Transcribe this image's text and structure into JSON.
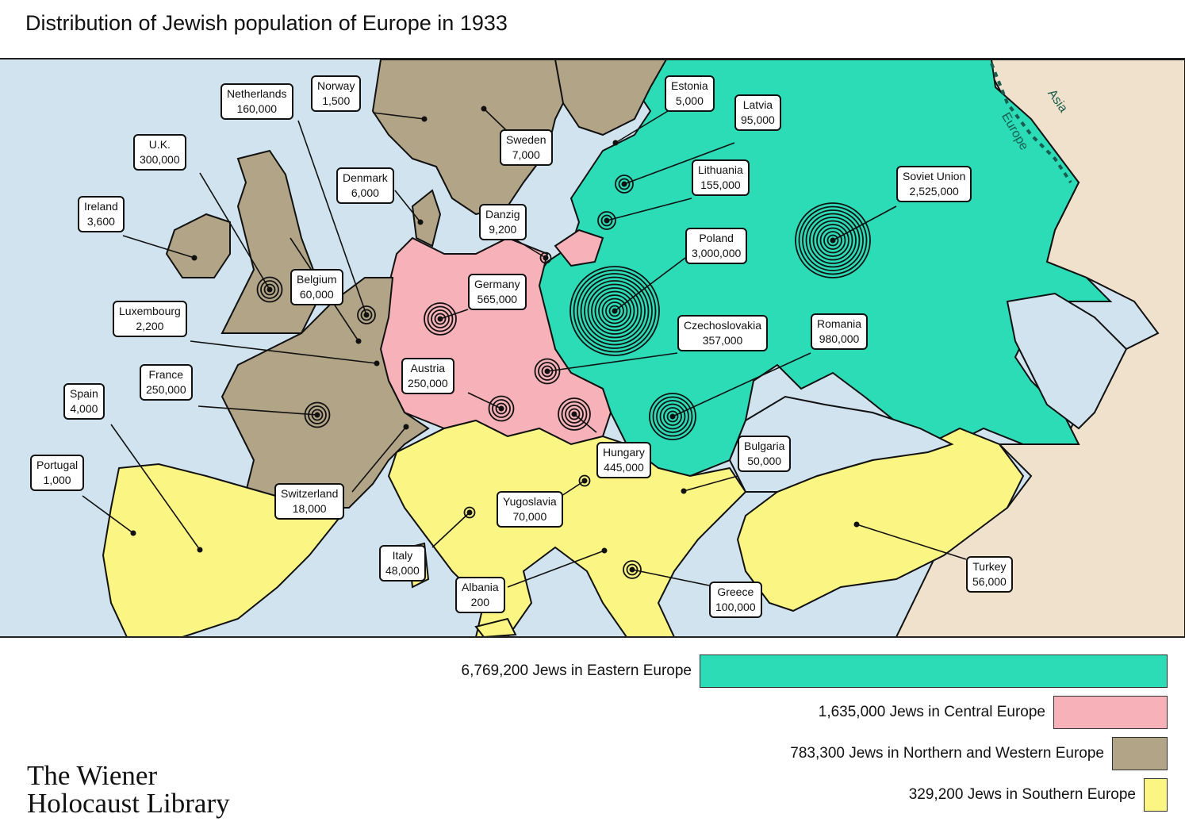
{
  "title": "Distribution of Jewish population of Europe in 1933",
  "colors": {
    "sea": "#d1e3ee",
    "eastern": "#2bdcb7",
    "central": "#f7b1b8",
    "northern_western": "#b1a487",
    "southern": "#fbf584",
    "asia": "#efe1cb"
  },
  "map": {
    "continent_labels": [
      "Europe",
      "Asia"
    ],
    "countries": [
      {
        "name": "Norway",
        "population": "1,500"
      },
      {
        "name": "Netherlands",
        "population": "160,000"
      },
      {
        "name": "U.K.",
        "population": "300,000"
      },
      {
        "name": "Ireland",
        "population": "3,600"
      },
      {
        "name": "Denmark",
        "population": "6,000"
      },
      {
        "name": "Sweden",
        "population": "7,000"
      },
      {
        "name": "Estonia",
        "population": "5,000"
      },
      {
        "name": "Latvia",
        "population": "95,000"
      },
      {
        "name": "Lithuania",
        "population": "155,000"
      },
      {
        "name": "Soviet Union",
        "population": "2,525,000"
      },
      {
        "name": "Danzig",
        "population": "9,200"
      },
      {
        "name": "Poland",
        "population": "3,000,000"
      },
      {
        "name": "Belgium",
        "population": "60,000"
      },
      {
        "name": "Luxembourg",
        "population": "2,200"
      },
      {
        "name": "Germany",
        "population": "565,000"
      },
      {
        "name": "Czechoslovakia",
        "population": "357,000"
      },
      {
        "name": "Romania",
        "population": "980,000"
      },
      {
        "name": "France",
        "population": "250,000"
      },
      {
        "name": "Austria",
        "population": "250,000"
      },
      {
        "name": "Spain",
        "population": "4,000"
      },
      {
        "name": "Portugal",
        "population": "1,000"
      },
      {
        "name": "Hungary",
        "population": "445,000"
      },
      {
        "name": "Bulgaria",
        "population": "50,000"
      },
      {
        "name": "Switzerland",
        "population": "18,000"
      },
      {
        "name": "Yugoslavia",
        "population": "70,000"
      },
      {
        "name": "Italy",
        "population": "48,000"
      },
      {
        "name": "Albania",
        "population": "200"
      },
      {
        "name": "Greece",
        "population": "100,000"
      },
      {
        "name": "Turkey",
        "population": "56,000"
      }
    ]
  },
  "legend": [
    {
      "label": "6,769,200 Jews in Eastern Europe",
      "value": 6769200,
      "color": "#2bdcb7"
    },
    {
      "label": "1,635,000 Jews in Central Europe",
      "value": 1635000,
      "color": "#f7b1b8"
    },
    {
      "label": "783,300 Jews in Northern and Western Europe",
      "value": 783300,
      "color": "#b1a487"
    },
    {
      "label": "329,200 Jews in Southern Europe",
      "value": 329200,
      "color": "#fbf584"
    }
  ],
  "logo": {
    "line1": "The Wiener",
    "line2": "Holocaust Library"
  }
}
